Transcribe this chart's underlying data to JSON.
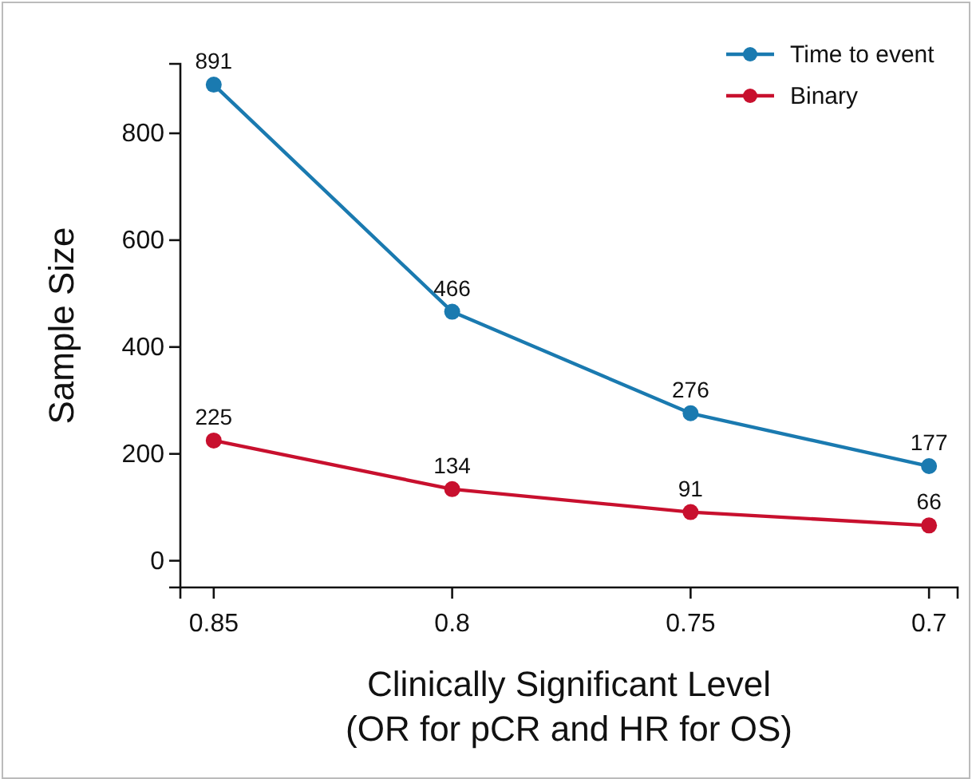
{
  "chart_data": {
    "type": "line",
    "xlabel": "Clinically Significant Level\n(OR for pCR and HR for OS)",
    "ylabel": "Sample Size",
    "x": [
      0.85,
      0.8,
      0.75,
      0.7
    ],
    "xlim": [
      0.857,
      0.694
    ],
    "xticks": [
      0.85,
      0.8,
      0.75,
      0.7
    ],
    "ylim": [
      -50,
      930
    ],
    "yticks": [
      0,
      200,
      400,
      600,
      800
    ],
    "series": [
      {
        "name": "Time to event",
        "color": "#1a7ab0",
        "values": [
          891,
          466,
          276,
          177
        ]
      },
      {
        "name": "Binary",
        "color": "#c8102e",
        "values": [
          225,
          134,
          91,
          66
        ]
      }
    ],
    "data_labels": true,
    "marker": "circle",
    "line_style": "solid",
    "legend": "top right",
    "grid": false
  }
}
